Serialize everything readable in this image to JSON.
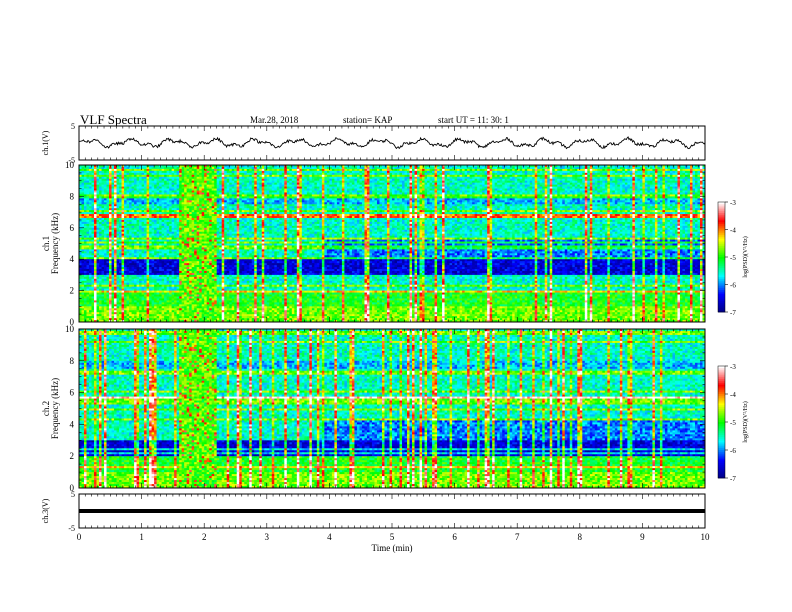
{
  "header": {
    "title": "VLF Spectra",
    "date": "Mar.28, 2018",
    "station": "station= KAP",
    "start_ut": "start  UT  =   11: 30: 1"
  },
  "chart_data": [
    {
      "type": "line",
      "name": "ch1-voltage",
      "ylabel": "ch.1(V)",
      "ylim": [
        -5,
        5
      ],
      "yticks": [
        "5",
        "-5"
      ],
      "xlim": [
        0,
        10
      ],
      "approx_mean": 0.0,
      "approx_amplitude": 1.6
    },
    {
      "type": "heatmap",
      "name": "ch1-spectrogram",
      "ylabel": "ch.1\nFrequency (kHz)",
      "ylim": [
        0,
        10
      ],
      "yticks": [
        "0",
        "2",
        "4",
        "6",
        "8",
        "10"
      ],
      "xlim": [
        0,
        10
      ],
      "colorbar": {
        "label": "log(PSD)(V²/Hz)",
        "range": [
          -7,
          -3
        ],
        "ticks": [
          "-3",
          "-4",
          "-5",
          "-6",
          "-7"
        ],
        "colors": [
          "#00007f",
          "#0000ff",
          "#00ffff",
          "#00ff00",
          "#ffff00",
          "#ff0000",
          "#ffffff"
        ]
      },
      "features": {
        "burst_minutes": [
          1.6,
          2.2
        ],
        "dark_band_khz": [
          3.0,
          4.0
        ],
        "transition_minute": 3.9
      }
    },
    {
      "type": "heatmap",
      "name": "ch2-spectrogram",
      "ylabel": "ch.2\nFrequency (kHz)",
      "ylim": [
        0,
        10
      ],
      "yticks": [
        "0",
        "2",
        "4",
        "6",
        "8",
        "10"
      ],
      "xlim": [
        0,
        10
      ],
      "colorbar": {
        "label": "log(PSD)(V²/Hz)",
        "range": [
          -7,
          -3
        ],
        "ticks": [
          "-3",
          "-4",
          "-5",
          "-6",
          "-7"
        ],
        "colors": [
          "#00007f",
          "#0000ff",
          "#00ffff",
          "#00ff00",
          "#ffff00",
          "#ff0000",
          "#ffffff"
        ]
      },
      "features": {
        "burst_minutes": [
          1.6,
          2.2
        ],
        "dark_band_khz": [
          2.0,
          3.0
        ],
        "transition_minute": 3.9
      }
    },
    {
      "type": "line",
      "name": "ch3-voltage",
      "ylabel": "ch.3(V)",
      "ylim": [
        -5,
        5
      ],
      "yticks": [
        "5",
        "-5"
      ],
      "xlim": [
        0,
        10
      ],
      "constant_value": 0.0
    }
  ],
  "xaxis": {
    "label": "Time (min)",
    "ticks": [
      "0",
      "1",
      "2",
      "3",
      "4",
      "5",
      "6",
      "7",
      "8",
      "9",
      "10"
    ]
  }
}
